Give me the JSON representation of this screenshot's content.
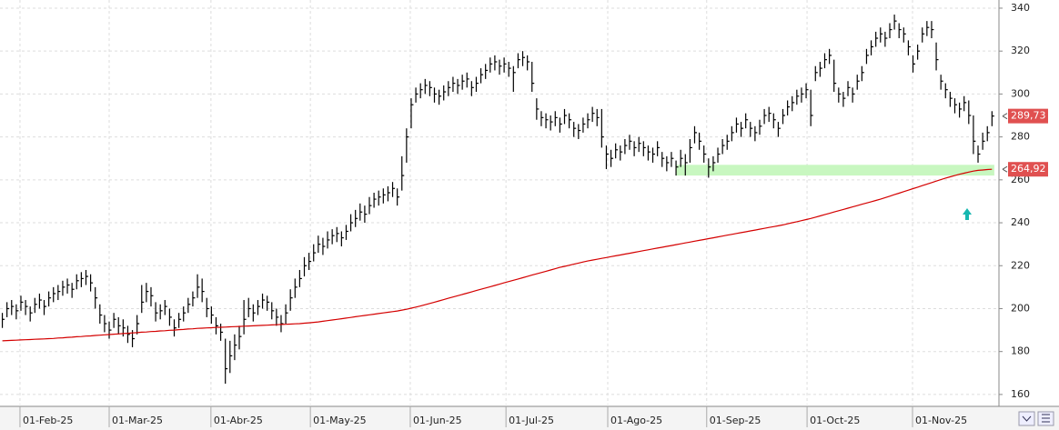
{
  "chart_data": {
    "type": "ohlc",
    "xlim": [
      -0.5,
      214.5
    ],
    "xticks": [
      {
        "value": 3.8,
        "label": "01-Feb-25"
      },
      {
        "value": 23.0,
        "label": "01-Mar-25"
      },
      {
        "value": 44.9,
        "label": "01-Abr-25"
      },
      {
        "value": 66.3,
        "label": "01-May-25"
      },
      {
        "value": 87.8,
        "label": "01-Jun-25"
      },
      {
        "value": 108.4,
        "label": "01-Jul-25"
      },
      {
        "value": 130.3,
        "label": "01-Ago-25"
      },
      {
        "value": 151.6,
        "label": "01-Sep-25"
      },
      {
        "value": 173.2,
        "label": "01-Oct-25"
      },
      {
        "value": 195.9,
        "label": "01-Nov-25"
      }
    ],
    "ylim": [
      155.3,
      343.8
    ],
    "yticks": [
      160,
      180,
      200,
      220,
      240,
      260,
      280,
      300,
      320,
      340
    ],
    "grid": true,
    "bar_color": "#000000",
    "high": [
      198,
      203,
      204,
      202,
      206,
      204,
      201,
      205,
      207,
      204,
      208,
      210,
      211,
      213,
      214,
      212,
      216,
      217,
      218,
      216,
      210,
      202,
      197,
      194,
      198,
      196,
      195,
      192,
      190,
      197,
      211,
      212,
      210,
      203,
      202,
      204,
      200,
      195,
      198,
      201,
      205,
      208,
      216,
      214,
      205,
      201,
      196,
      193,
      186,
      185,
      188,
      192,
      204,
      205,
      202,
      204,
      207,
      206,
      203,
      200,
      197,
      202,
      209,
      214,
      218,
      224,
      226,
      230,
      234,
      233,
      236,
      237,
      238,
      236,
      239,
      244,
      246,
      249,
      248,
      252,
      254,
      255,
      256,
      257,
      259,
      256,
      271,
      284,
      298,
      303,
      305,
      307,
      306,
      303,
      302,
      304,
      306,
      308,
      307,
      309,
      310,
      306,
      308,
      312,
      314,
      317,
      318,
      316,
      317,
      315,
      313,
      319,
      320,
      318,
      315,
      298,
      292,
      291,
      290,
      292,
      289,
      293,
      291,
      287,
      286,
      289,
      291,
      294,
      293,
      293,
      276,
      274,
      277,
      276,
      279,
      281,
      278,
      280,
      278,
      276,
      275,
      278,
      273,
      271,
      273,
      269,
      274,
      272,
      279,
      285,
      282,
      276,
      270,
      271,
      275,
      279,
      281,
      285,
      289,
      287,
      291,
      287,
      285,
      288,
      293,
      294,
      291,
      287,
      293,
      297,
      299,
      302,
      303,
      305,
      302,
      313,
      315,
      319,
      321,
      316,
      303,
      301,
      306,
      303,
      309,
      313,
      321,
      325,
      329,
      331,
      329,
      333,
      337,
      333,
      331,
      325,
      318,
      323,
      331,
      334,
      334,
      324,
      309,
      305,
      301,
      298,
      296,
      299,
      297,
      290,
      276,
      282,
      285,
      292
    ],
    "low": [
      191,
      196,
      197,
      195,
      199,
      197,
      194,
      198,
      200,
      197,
      201,
      203,
      204,
      206,
      207,
      205,
      209,
      210,
      211,
      208,
      200,
      193,
      189,
      186,
      191,
      188,
      187,
      184,
      182,
      188,
      198,
      203,
      201,
      194,
      195,
      197,
      192,
      187,
      191,
      194,
      198,
      201,
      205,
      203,
      196,
      193,
      188,
      185,
      165,
      170,
      176,
      181,
      188,
      196,
      194,
      197,
      200,
      199,
      195,
      192,
      189,
      193,
      199,
      205,
      210,
      215,
      218,
      222,
      226,
      225,
      228,
      230,
      231,
      229,
      232,
      236,
      238,
      241,
      240,
      244,
      247,
      248,
      249,
      250,
      252,
      248,
      255,
      268,
      284,
      296,
      298,
      300,
      299,
      296,
      295,
      297,
      299,
      301,
      300,
      302,
      303,
      299,
      301,
      305,
      307,
      310,
      311,
      309,
      310,
      308,
      301,
      312,
      313,
      311,
      301,
      288,
      285,
      284,
      283,
      285,
      282,
      286,
      284,
      280,
      279,
      282,
      284,
      287,
      285,
      275,
      265,
      266,
      270,
      269,
      272,
      274,
      271,
      273,
      271,
      269,
      268,
      271,
      266,
      264,
      266,
      262,
      266,
      262,
      268,
      277,
      274,
      268,
      261,
      264,
      268,
      272,
      274,
      278,
      282,
      280,
      284,
      280,
      278,
      281,
      286,
      287,
      284,
      280,
      286,
      290,
      292,
      295,
      296,
      298,
      285,
      306,
      308,
      312,
      314,
      301,
      296,
      294,
      299,
      296,
      302,
      306,
      314,
      318,
      322,
      324,
      322,
      326,
      330,
      326,
      324,
      318,
      310,
      316,
      324,
      327,
      326,
      311,
      302,
      298,
      294,
      291,
      289,
      292,
      286,
      272,
      268,
      274,
      278,
      285
    ],
    "close": [
      195,
      200,
      201,
      199,
      203,
      201,
      198,
      202,
      204,
      201,
      205,
      207,
      208,
      210,
      211,
      209,
      213,
      214,
      215,
      212,
      205,
      197,
      193,
      190,
      195,
      192,
      191,
      188,
      186,
      193,
      203,
      208,
      206,
      198,
      199,
      201,
      196,
      191,
      195,
      198,
      202,
      205,
      210,
      208,
      200,
      197,
      192,
      189,
      172,
      178,
      183,
      187,
      195,
      200,
      198,
      201,
      204,
      203,
      199,
      196,
      193,
      198,
      205,
      210,
      214,
      220,
      222,
      226,
      230,
      229,
      232,
      234,
      235,
      233,
      236,
      240,
      242,
      245,
      244,
      248,
      251,
      252,
      253,
      254,
      256,
      252,
      262,
      280,
      295,
      300,
      302,
      304,
      303,
      300,
      299,
      301,
      303,
      305,
      304,
      306,
      307,
      303,
      305,
      309,
      311,
      314,
      315,
      313,
      314,
      312,
      310,
      316,
      317,
      315,
      305,
      293,
      289,
      288,
      287,
      289,
      286,
      290,
      288,
      284,
      283,
      286,
      288,
      291,
      289,
      280,
      272,
      270,
      274,
      273,
      276,
      278,
      275,
      277,
      275,
      273,
      272,
      275,
      270,
      268,
      270,
      266,
      270,
      268,
      275,
      282,
      278,
      272,
      266,
      268,
      272,
      276,
      278,
      282,
      286,
      284,
      288,
      284,
      282,
      285,
      290,
      291,
      288,
      284,
      290,
      294,
      296,
      299,
      300,
      302,
      290,
      310,
      312,
      316,
      318,
      305,
      300,
      298,
      303,
      300,
      306,
      310,
      318,
      322,
      326,
      328,
      326,
      330,
      334,
      330,
      328,
      322,
      314,
      320,
      328,
      331,
      330,
      316,
      306,
      302,
      298,
      295,
      293,
      296,
      290,
      278,
      272,
      278,
      282,
      289.73
    ],
    "ma": {
      "color": "#d40000",
      "values": [
        185.0,
        185.1,
        185.2,
        185.3,
        185.4,
        185.5,
        185.6,
        185.7,
        185.8,
        185.9,
        186.0,
        186.1,
        186.3,
        186.4,
        186.6,
        186.7,
        186.9,
        187.0,
        187.2,
        187.3,
        187.5,
        187.6,
        187.8,
        187.9,
        188.1,
        188.2,
        188.4,
        188.5,
        188.7,
        188.8,
        189.0,
        189.1,
        189.3,
        189.4,
        189.6,
        189.7,
        189.9,
        190.0,
        190.2,
        190.3,
        190.5,
        190.6,
        190.8,
        190.9,
        191.0,
        191.1,
        191.2,
        191.3,
        191.4,
        191.5,
        191.6,
        191.7,
        191.8,
        191.9,
        192.0,
        192.1,
        192.2,
        192.3,
        192.4,
        192.5,
        192.6,
        192.7,
        192.8,
        192.9,
        193.0,
        193.2,
        193.4,
        193.6,
        193.8,
        194.1,
        194.4,
        194.7,
        195.0,
        195.3,
        195.6,
        195.9,
        196.2,
        196.5,
        196.8,
        197.1,
        197.4,
        197.7,
        198.0,
        198.3,
        198.6,
        198.9,
        199.3,
        199.7,
        200.2,
        200.7,
        201.2,
        201.8,
        202.4,
        203.0,
        203.6,
        204.2,
        204.8,
        205.4,
        206.0,
        206.6,
        207.2,
        207.8,
        208.4,
        209.0,
        209.6,
        210.2,
        210.8,
        211.4,
        212.0,
        212.6,
        213.2,
        213.8,
        214.4,
        215.0,
        215.6,
        216.2,
        216.8,
        217.4,
        218.0,
        218.6,
        219.2,
        219.7,
        220.2,
        220.7,
        221.2,
        221.7,
        222.2,
        222.6,
        223.0,
        223.4,
        223.8,
        224.2,
        224.6,
        225.0,
        225.4,
        225.8,
        226.2,
        226.6,
        227.0,
        227.4,
        227.8,
        228.2,
        228.6,
        229.0,
        229.4,
        229.8,
        230.2,
        230.6,
        231.0,
        231.4,
        231.8,
        232.2,
        232.6,
        233.0,
        233.4,
        233.8,
        234.2,
        234.6,
        235.0,
        235.4,
        235.8,
        236.2,
        236.6,
        237.0,
        237.4,
        237.8,
        238.2,
        238.6,
        239.0,
        239.5,
        240.0,
        240.5,
        241.0,
        241.5,
        242.0,
        242.6,
        243.2,
        243.8,
        244.4,
        245.0,
        245.6,
        246.2,
        246.8,
        247.4,
        248.0,
        248.6,
        249.2,
        249.8,
        250.4,
        251.0,
        251.7,
        252.4,
        253.1,
        253.8,
        254.5,
        255.2,
        255.9,
        256.6,
        257.3,
        258.0,
        258.7,
        259.4,
        260.1,
        260.8,
        261.4,
        262.0,
        262.6,
        263.1,
        263.6,
        264.1,
        264.4,
        264.6,
        264.8,
        264.92
      ]
    },
    "zone": {
      "color": "#c8f7c0",
      "x": [
        145.0,
        213.5
      ],
      "y": [
        262,
        267
      ]
    },
    "markers": [
      {
        "value": 289.73,
        "label": "289,73",
        "color": "#e05050"
      },
      {
        "value": 264.92,
        "label": "264,92",
        "color": "#e05050"
      }
    ]
  }
}
